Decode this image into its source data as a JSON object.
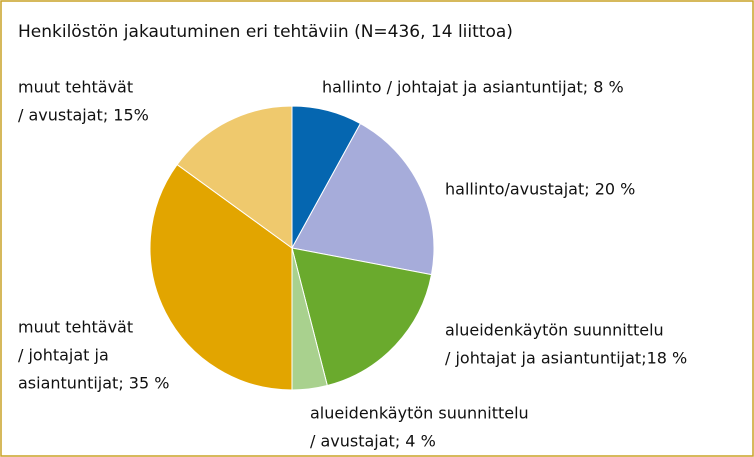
{
  "chart_data": {
    "type": "pie",
    "title": "Henkilöstön jakautuminen eri tehtäviin (N=436, 14 liittoa)",
    "categories": [
      "hallinto / johtajat ja asiantuntijat",
      "hallinto/avustajat",
      "alueidenkäytön suunnittelu / johtajat ja asiantuntijat",
      "alueidenkäytön suunnittelu / avustajat",
      "muut tehtävät / johtajat ja asiantuntijat",
      "muut tehtävät / avustajat"
    ],
    "values": [
      8,
      20,
      18,
      4,
      35,
      15
    ],
    "value_labels": [
      [
        "hallinto / johtajat ja asiantuntijat; 8 %"
      ],
      [
        "hallinto/avustajat; 20 %"
      ],
      [
        "alueidenkäytön suunnittelu",
        "/ johtajat ja asiantuntijat;18 %"
      ],
      [
        "alueidenkäytön suunnittelu",
        "/ avustajat; 4 %"
      ],
      [
        "muut tehtävät",
        "/ johtajat ja",
        "asiantuntijat; 35 %"
      ],
      [
        "muut tehtävät",
        "/ avustajat; 15%"
      ]
    ],
    "colors": [
      "#0566b0",
      "#a6acda",
      "#6aaa2d",
      "#a9d18e",
      "#e2a500",
      "#efc96d"
    ]
  }
}
